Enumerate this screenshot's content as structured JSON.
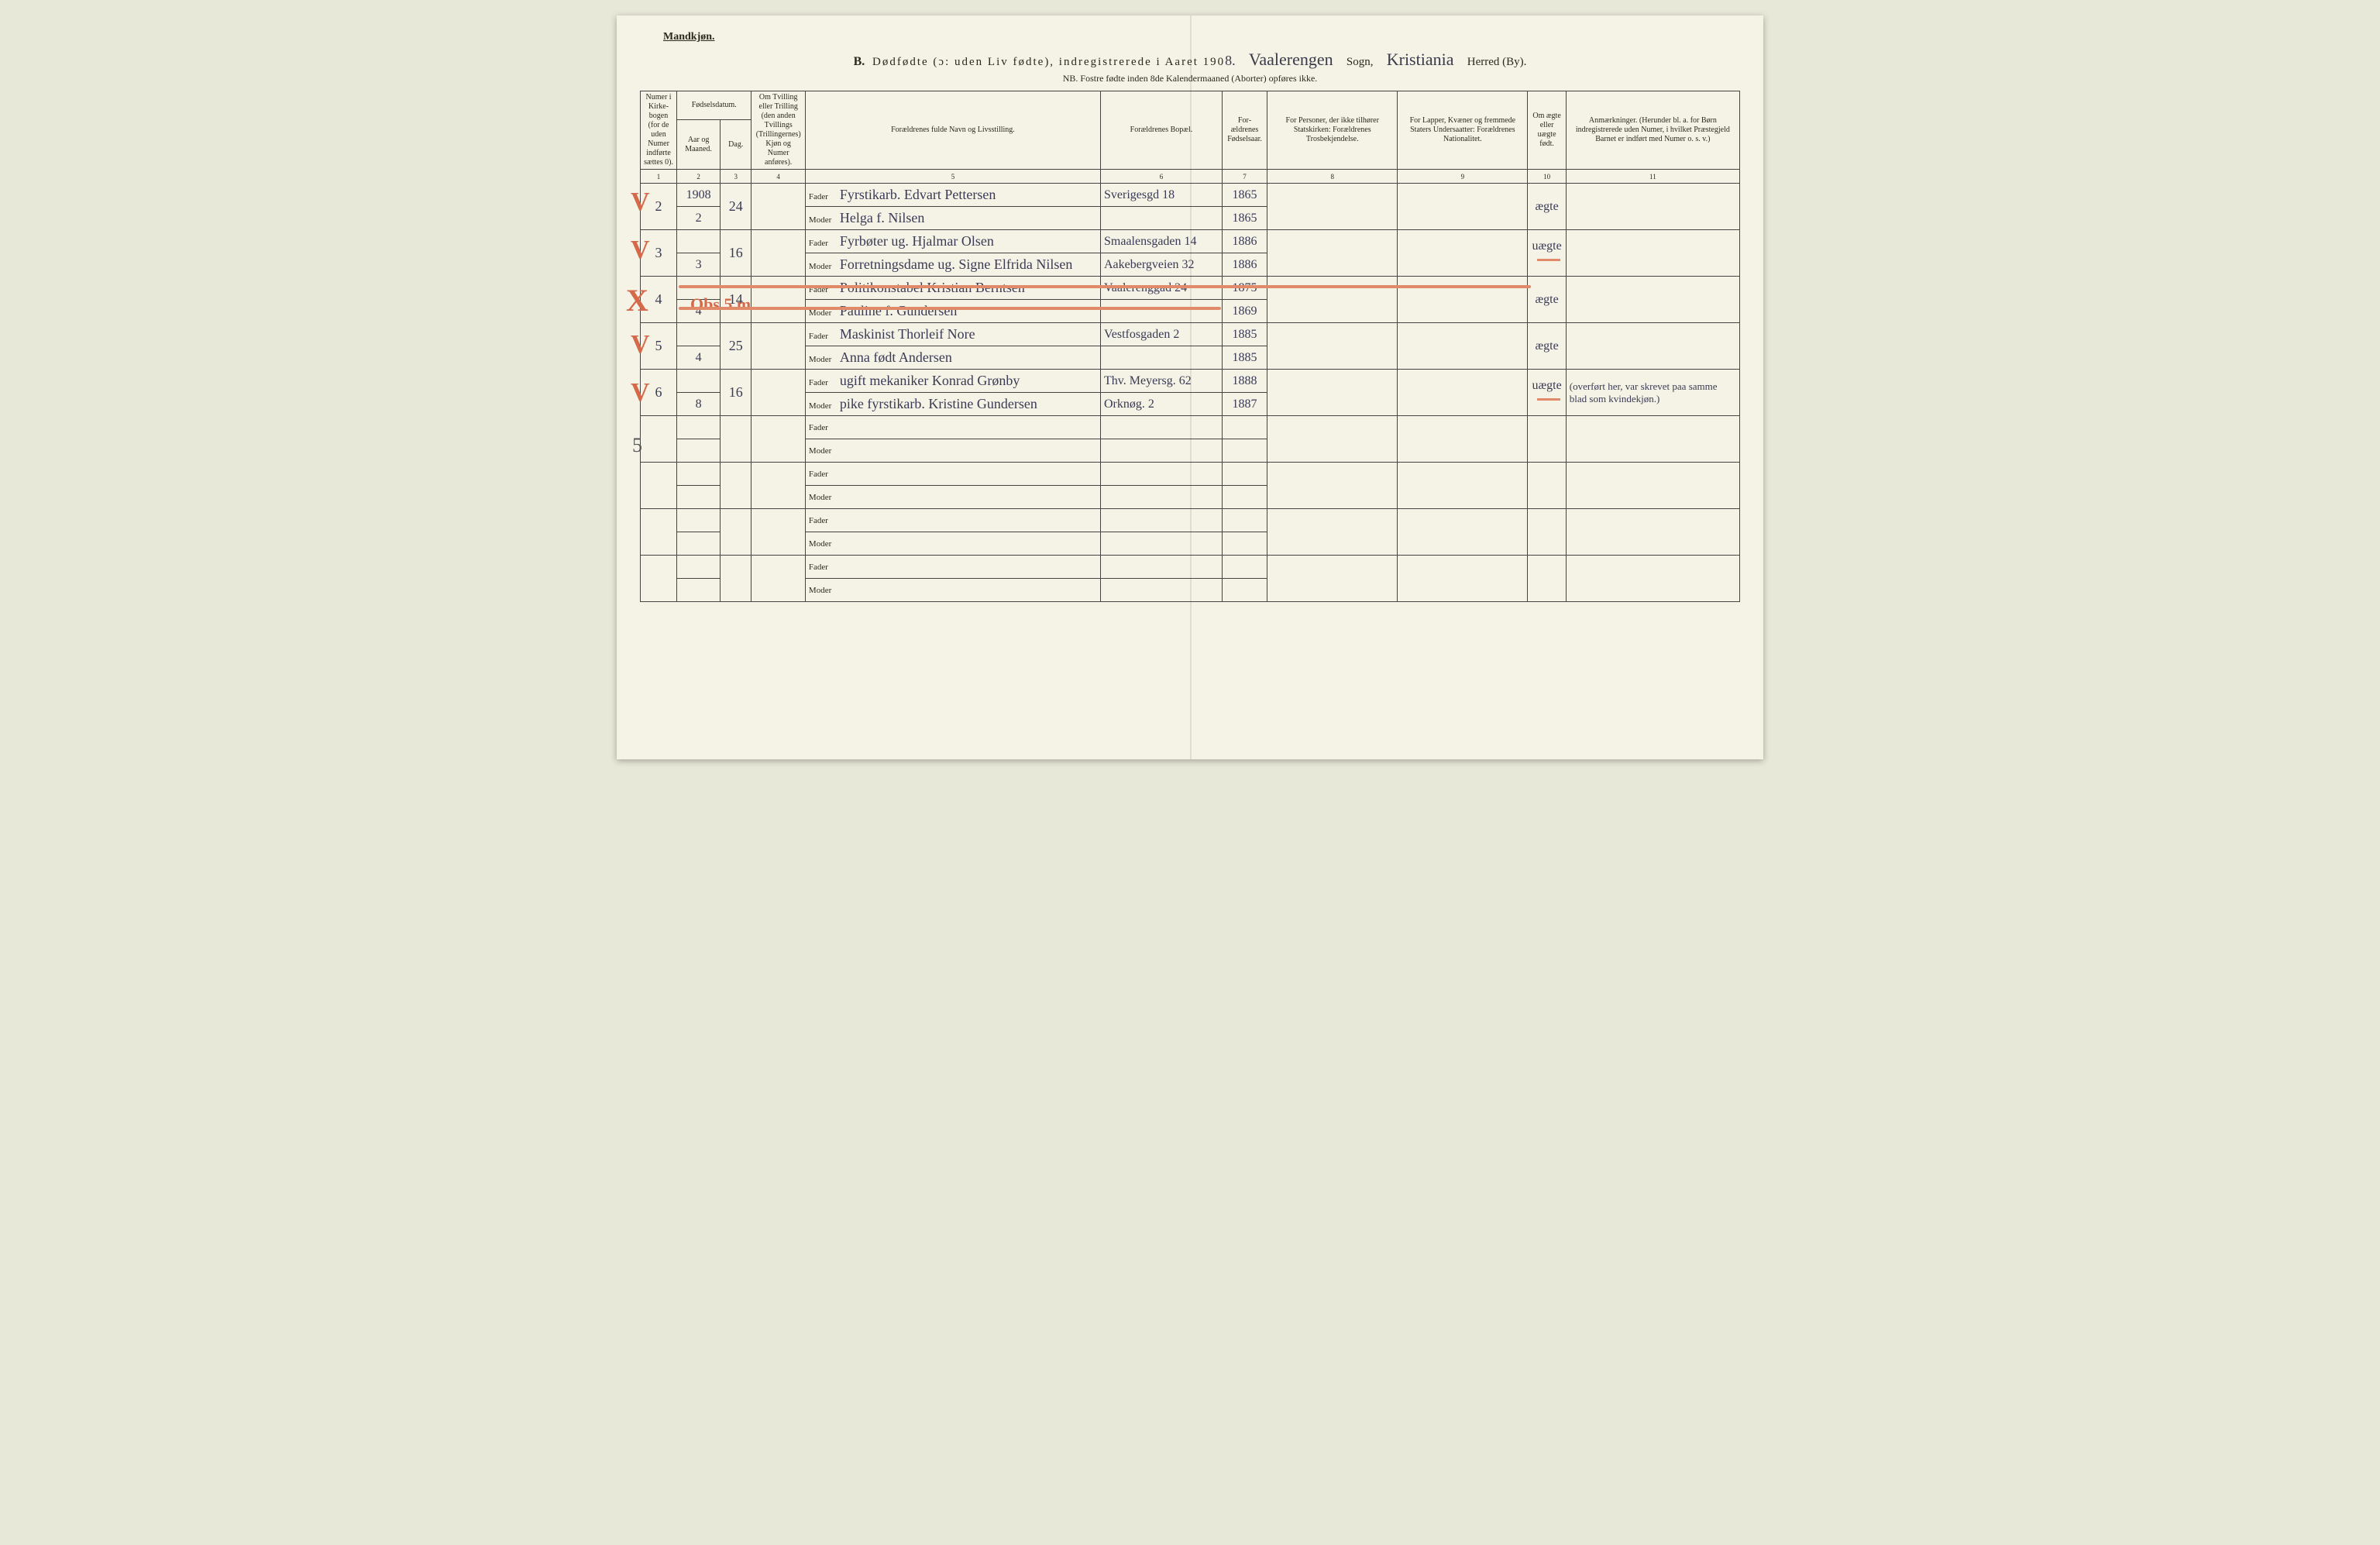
{
  "header": {
    "gender": "Mandkjøn.",
    "title_prefix": "B.",
    "title_main": "Dødfødte (ɔ: uden Liv fødte), indregistrerede i Aaret 190",
    "year_suffix": "8.",
    "sogn_hand": "Vaalerengen",
    "sogn_label": "Sogn,",
    "herred_hand": "Kristiania",
    "herred_label": "Herred (By).",
    "sub_note": "NB. Fostre fødte inden 8de Kalendermaaned (Aborter) opføres ikke."
  },
  "columns": {
    "c1": "Numer i Kirke­bogen (for de uden Numer indførte sættes 0).",
    "c2_top": "Fødselsdatum.",
    "c2a": "Aar og Maaned.",
    "c2b": "Dag.",
    "c4": "Om Tvilling eller Trilling (den anden Tvillings (Trillingernes) Kjøn og Numer anføres).",
    "c5": "Forældrenes fulde Navn og Livsstilling.",
    "c6": "Forældrenes Bopæl.",
    "c7": "For­ældrenes Fødsels­aar.",
    "c8": "For Personer, der ikke tilhører Statskirken: Forældrenes Trosbekjendelse.",
    "c9": "For Lapper, Kvæner og fremmede Staters Undersaatter: Forældrenes Nationalitet.",
    "c10": "Om ægte eller uægte født.",
    "c11": "Anmærkninger. (Herunder bl. a. for Børn indregistrerede uden Numer, i hvilket Præstegjeld Barnet er indført med Numer o. s. v.)"
  },
  "colnums": [
    "1",
    "2",
    "3",
    "4",
    "5",
    "6",
    "7",
    "8",
    "9",
    "10",
    "11"
  ],
  "fm": {
    "fader": "Fader",
    "moder": "Moder"
  },
  "rows": [
    {
      "num": "2",
      "year": "1908",
      "month": "2",
      "day": "24",
      "fader": "Fyrstikarb. Edvart Pettersen",
      "fader_bopel": "Sverigesgd 18",
      "fader_aar": "1865",
      "moder": "Helga f. Nilsen",
      "moder_bopel": "",
      "moder_aar": "1865",
      "aegte": "ægte",
      "anm": ""
    },
    {
      "num": "3",
      "year": "",
      "month": "3",
      "day": "16",
      "fader": "Fyrbøter ug. Hjalmar Olsen",
      "fader_bopel": "Smaalensgaden 14",
      "fader_aar": "1886",
      "moder": "Forretningsdame ug. Signe Elfrida Nilsen",
      "moder_bopel": "Aakebergveien 32",
      "moder_aar": "1886",
      "aegte": "uægte",
      "anm": ""
    },
    {
      "num": "4",
      "year": "",
      "month": "4",
      "day": "14",
      "fader": "Politikonstabel Kristian Berntsen",
      "fader_bopel": "Vaalerenggad 24",
      "fader_aar": "1875",
      "moder": "Pauline f. Gundersen",
      "moder_bopel": "",
      "moder_aar": "1869",
      "aegte": "ægte",
      "anm": ""
    },
    {
      "num": "5",
      "year": "",
      "month": "4",
      "day": "25",
      "fader": "Maskinist Thorleif Nore",
      "fader_bopel": "Vestfosgaden 2",
      "fader_aar": "1885",
      "moder": "Anna født Andersen",
      "moder_bopel": "",
      "moder_aar": "1885",
      "aegte": "ægte",
      "anm": ""
    },
    {
      "num": "6",
      "year": "",
      "month": "8",
      "day": "16",
      "fader": "ugift mekaniker Konrad Grønby",
      "fader_bopel": "Thv. Meyersg. 62",
      "fader_aar": "1888",
      "moder": "pike fyrstikarb. Kristine Gundersen",
      "moder_bopel": "Orknøg. 2",
      "moder_aar": "1887",
      "aegte": "uægte",
      "anm": "(overført her, var skrevet paa samme blad som kvindekjøn.)"
    }
  ],
  "empty_pairs": 4,
  "margin": {
    "checks": [
      "V",
      "V",
      "X",
      "V",
      "V"
    ],
    "left_note": "5",
    "overwrite": "Obs 5 m"
  },
  "colors": {
    "paper": "#f5f3e6",
    "ink": "#2a2a1a",
    "handwriting": "#3a3a55",
    "red_pencil": "#d46a4a",
    "red_strike": "#e08a6a"
  }
}
